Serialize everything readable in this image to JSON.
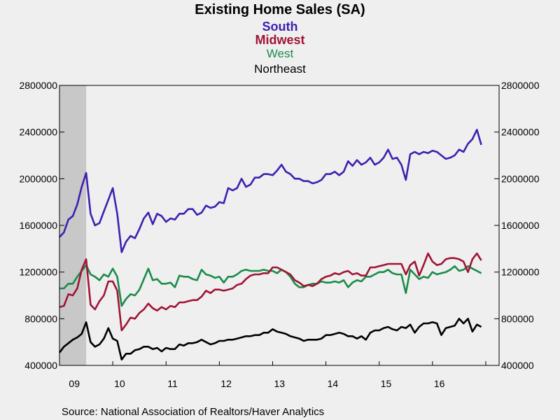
{
  "chart_data": {
    "type": "line",
    "title": "Existing Home Sales (SA)",
    "legend_placement": "top-center",
    "source": "Source:  National Association of Realtors/Haver Analytics",
    "ylim": [
      400000,
      2800000
    ],
    "yticks": [
      400000,
      800000,
      1200000,
      1600000,
      2000000,
      2400000,
      2800000
    ],
    "ytick_labels": [
      "400000",
      "800000",
      "1200000",
      "1600000",
      "2000000",
      "2400000",
      "2800000"
    ],
    "xlim": [
      2009.0,
      2017.25
    ],
    "xtick_labels": [
      {
        "label": "09",
        "pos": 2009.15
      },
      {
        "label": "10",
        "pos": 2010.0
      },
      {
        "label": "11",
        "pos": 2011.0
      },
      {
        "label": "12",
        "pos": 2012.0
      },
      {
        "label": "13",
        "pos": 2013.0
      },
      {
        "label": "14",
        "pos": 2014.0
      },
      {
        "label": "15",
        "pos": 2015.0
      },
      {
        "label": "16",
        "pos": 2016.0
      }
    ],
    "recession_shade": [
      2009.0,
      2009.5
    ],
    "grid": false,
    "x_start": 2009.0,
    "x_step": 0.08333,
    "series": [
      {
        "name": "South",
        "color": "#3f20b0",
        "values": [
          1500000,
          1540000,
          1650000,
          1680000,
          1780000,
          1930000,
          2050000,
          1700000,
          1600000,
          1620000,
          1720000,
          1820000,
          1920000,
          1700000,
          1370000,
          1460000,
          1510000,
          1490000,
          1570000,
          1660000,
          1710000,
          1610000,
          1700000,
          1680000,
          1630000,
          1660000,
          1650000,
          1700000,
          1700000,
          1740000,
          1740000,
          1690000,
          1710000,
          1770000,
          1750000,
          1760000,
          1800000,
          1790000,
          1920000,
          1900000,
          1920000,
          2000000,
          1930000,
          1950000,
          2010000,
          2010000,
          2040000,
          2040000,
          2030000,
          2070000,
          2120000,
          2060000,
          2040000,
          2000000,
          2000000,
          1980000,
          1980000,
          1960000,
          1970000,
          1990000,
          2040000,
          2040000,
          2060000,
          2030000,
          2060000,
          2150000,
          2110000,
          2160000,
          2120000,
          2140000,
          2180000,
          2120000,
          2140000,
          2180000,
          2250000,
          2170000,
          2180000,
          2120000,
          1990000,
          2210000,
          2230000,
          2210000,
          2230000,
          2220000,
          2240000,
          2230000,
          2200000,
          2170000,
          2180000,
          2200000,
          2250000,
          2230000,
          2300000,
          2340000,
          2420000,
          2290000
        ]
      },
      {
        "name": "Midwest",
        "color": "#a01535",
        "values": [
          900000,
          910000,
          1010000,
          1000000,
          1060000,
          1220000,
          1310000,
          920000,
          880000,
          950000,
          1000000,
          1120000,
          1120000,
          1040000,
          700000,
          750000,
          810000,
          800000,
          850000,
          880000,
          930000,
          890000,
          870000,
          900000,
          880000,
          910000,
          900000,
          940000,
          940000,
          950000,
          960000,
          960000,
          990000,
          1040000,
          1020000,
          1050000,
          1050000,
          1040000,
          1050000,
          1060000,
          1090000,
          1100000,
          1140000,
          1170000,
          1180000,
          1180000,
          1190000,
          1190000,
          1240000,
          1240000,
          1220000,
          1200000,
          1180000,
          1130000,
          1110000,
          1080000,
          1090000,
          1080000,
          1100000,
          1140000,
          1160000,
          1170000,
          1190000,
          1180000,
          1200000,
          1210000,
          1180000,
          1190000,
          1170000,
          1170000,
          1240000,
          1240000,
          1250000,
          1260000,
          1270000,
          1270000,
          1270000,
          1270000,
          1180000,
          1260000,
          1290000,
          1170000,
          1260000,
          1360000,
          1290000,
          1260000,
          1270000,
          1310000,
          1320000,
          1320000,
          1310000,
          1290000,
          1200000,
          1310000,
          1360000,
          1300000
        ]
      },
      {
        "name": "West",
        "color": "#1a8c4a",
        "values": [
          1060000,
          1060000,
          1100000,
          1100000,
          1160000,
          1210000,
          1260000,
          1180000,
          1160000,
          1130000,
          1180000,
          1160000,
          1230000,
          1160000,
          910000,
          970000,
          1010000,
          1000000,
          1050000,
          1140000,
          1230000,
          1130000,
          1140000,
          1100000,
          1100000,
          1110000,
          1070000,
          1170000,
          1160000,
          1160000,
          1140000,
          1130000,
          1220000,
          1180000,
          1170000,
          1150000,
          1160000,
          1110000,
          1160000,
          1160000,
          1180000,
          1210000,
          1220000,
          1210000,
          1210000,
          1210000,
          1220000,
          1210000,
          1210000,
          1190000,
          1220000,
          1200000,
          1160000,
          1100000,
          1070000,
          1070000,
          1090000,
          1100000,
          1100000,
          1120000,
          1110000,
          1110000,
          1120000,
          1110000,
          1130000,
          1070000,
          1110000,
          1130000,
          1120000,
          1160000,
          1160000,
          1180000,
          1200000,
          1200000,
          1220000,
          1190000,
          1180000,
          1180000,
          1020000,
          1220000,
          1180000,
          1140000,
          1160000,
          1150000,
          1200000,
          1180000,
          1190000,
          1200000,
          1220000,
          1250000,
          1210000,
          1220000,
          1250000,
          1230000,
          1210000,
          1190000
        ]
      },
      {
        "name": "Northeast",
        "color": "#000000",
        "values": [
          510000,
          560000,
          590000,
          620000,
          640000,
          670000,
          770000,
          600000,
          560000,
          580000,
          630000,
          720000,
          630000,
          610000,
          450000,
          500000,
          500000,
          530000,
          540000,
          560000,
          560000,
          540000,
          550000,
          520000,
          550000,
          540000,
          540000,
          580000,
          570000,
          590000,
          590000,
          600000,
          620000,
          600000,
          580000,
          590000,
          610000,
          610000,
          620000,
          620000,
          630000,
          640000,
          650000,
          650000,
          660000,
          660000,
          680000,
          680000,
          710000,
          690000,
          680000,
          670000,
          650000,
          640000,
          630000,
          610000,
          620000,
          620000,
          620000,
          630000,
          660000,
          660000,
          670000,
          680000,
          670000,
          650000,
          650000,
          630000,
          650000,
          620000,
          680000,
          700000,
          700000,
          720000,
          730000,
          710000,
          700000,
          730000,
          720000,
          750000,
          680000,
          730000,
          760000,
          760000,
          770000,
          760000,
          660000,
          720000,
          730000,
          740000,
          800000,
          760000,
          800000,
          690000,
          750000,
          730000
        ]
      }
    ]
  }
}
